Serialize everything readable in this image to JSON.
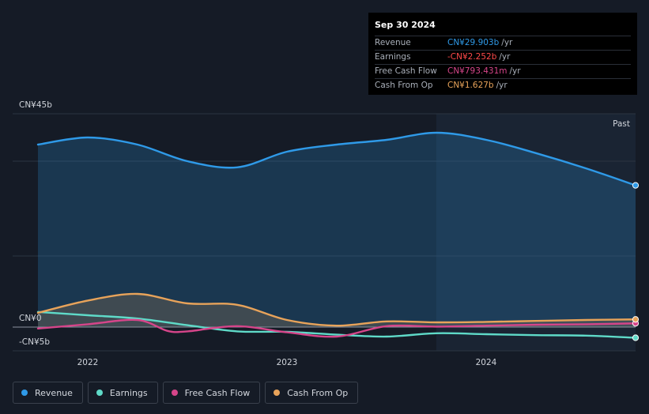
{
  "tooltip": {
    "date": "Sep 30 2024",
    "rows": [
      {
        "label": "Revenue",
        "value": "CN¥29.903b",
        "unit": "/yr",
        "color": "#2f9ae8"
      },
      {
        "label": "Earnings",
        "value": "-CN¥2.252b",
        "unit": "/yr",
        "color": "#ff4a4a"
      },
      {
        "label": "Free Cash Flow",
        "value": "CN¥793.431m",
        "unit": "/yr",
        "color": "#d6458a"
      },
      {
        "label": "Cash From Op",
        "value": "CN¥1.627b",
        "unit": "/yr",
        "color": "#e8a35a"
      }
    ]
  },
  "legend": [
    {
      "label": "Revenue",
      "color": "#2f9ae8"
    },
    {
      "label": "Earnings",
      "color": "#5fdac8"
    },
    {
      "label": "Free Cash Flow",
      "color": "#d6458a"
    },
    {
      "label": "Cash From Op",
      "color": "#e8a35a"
    }
  ],
  "chart_data": {
    "type": "line",
    "y_tick_labels": {
      "top": "CN¥45b",
      "zero": "CN¥0",
      "bottom": "-CN¥5b"
    },
    "ylim": [
      -5,
      45
    ],
    "xlim": [
      2021.75,
      2024.75
    ],
    "x_ticks": [
      {
        "value": 2022.0,
        "label": "2022"
      },
      {
        "value": 2023.0,
        "label": "2023"
      },
      {
        "value": 2024.0,
        "label": "2024"
      }
    ],
    "past_label": "Past",
    "past_region_start": 2023.75,
    "grid": true,
    "series": [
      {
        "name": "Revenue",
        "color": "#2f9ae8",
        "area": true,
        "points": [
          [
            2021.75,
            38.5
          ],
          [
            2022.0,
            40.0
          ],
          [
            2022.25,
            38.5
          ],
          [
            2022.5,
            35.0
          ],
          [
            2022.75,
            33.7
          ],
          [
            2023.0,
            37.0
          ],
          [
            2023.25,
            38.5
          ],
          [
            2023.5,
            39.5
          ],
          [
            2023.75,
            41.0
          ],
          [
            2024.0,
            39.5
          ],
          [
            2024.25,
            36.7
          ],
          [
            2024.5,
            33.5
          ],
          [
            2024.75,
            29.9
          ]
        ]
      },
      {
        "name": "Earnings",
        "color": "#5fdac8",
        "area": false,
        "points": [
          [
            2021.75,
            3.2
          ],
          [
            2022.0,
            2.5
          ],
          [
            2022.25,
            1.8
          ],
          [
            2022.5,
            0.4
          ],
          [
            2022.75,
            -0.9
          ],
          [
            2023.0,
            -1.0
          ],
          [
            2023.25,
            -1.6
          ],
          [
            2023.5,
            -2.0
          ],
          [
            2023.75,
            -1.3
          ],
          [
            2024.0,
            -1.5
          ],
          [
            2024.25,
            -1.7
          ],
          [
            2024.5,
            -1.8
          ],
          [
            2024.75,
            -2.252
          ]
        ]
      },
      {
        "name": "Free Cash Flow",
        "color": "#d6458a",
        "area": false,
        "points": [
          [
            2021.75,
            -0.3
          ],
          [
            2022.0,
            0.6
          ],
          [
            2022.25,
            1.5
          ],
          [
            2022.4,
            -0.8
          ],
          [
            2022.5,
            -0.9
          ],
          [
            2022.75,
            0.2
          ],
          [
            2023.0,
            -1.1
          ],
          [
            2023.25,
            -2.0
          ],
          [
            2023.5,
            0.2
          ],
          [
            2023.75,
            0.1
          ],
          [
            2024.0,
            0.3
          ],
          [
            2024.25,
            0.5
          ],
          [
            2024.5,
            0.6
          ],
          [
            2024.75,
            0.793
          ]
        ]
      },
      {
        "name": "Cash From Op",
        "color": "#e8a35a",
        "area": true,
        "points": [
          [
            2021.75,
            3.0
          ],
          [
            2022.0,
            5.6
          ],
          [
            2022.25,
            7.0
          ],
          [
            2022.5,
            5.0
          ],
          [
            2022.75,
            4.7
          ],
          [
            2023.0,
            1.5
          ],
          [
            2023.25,
            0.3
          ],
          [
            2023.5,
            1.2
          ],
          [
            2023.75,
            1.0
          ],
          [
            2024.0,
            1.1
          ],
          [
            2024.25,
            1.3
          ],
          [
            2024.5,
            1.5
          ],
          [
            2024.75,
            1.627
          ]
        ]
      }
    ]
  }
}
